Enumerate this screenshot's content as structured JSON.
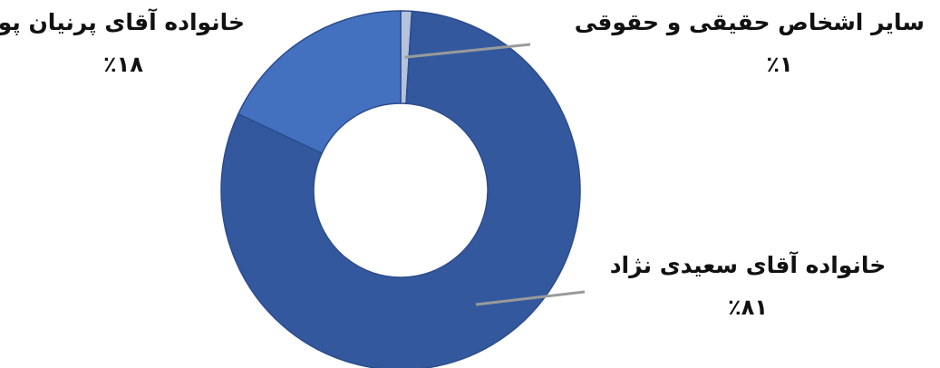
{
  "chart_data": {
    "type": "pie",
    "variant": "donut",
    "title": "",
    "series": [
      {
        "slices": [
          {
            "label": "سایر اشخاص حقیقی و حقوقی",
            "value_label": "٪۱",
            "value": 1,
            "color": "#b4c2dc"
          },
          {
            "label": "خانواده آقای سعیدی نژاد",
            "value_label": "٪۸۱",
            "value": 81,
            "color": "#34589e"
          },
          {
            "label": "خانواده آقای پرنیان پور",
            "value_label": "٪۱۸",
            "value": 18,
            "color": "#4470c0"
          }
        ]
      }
    ]
  }
}
